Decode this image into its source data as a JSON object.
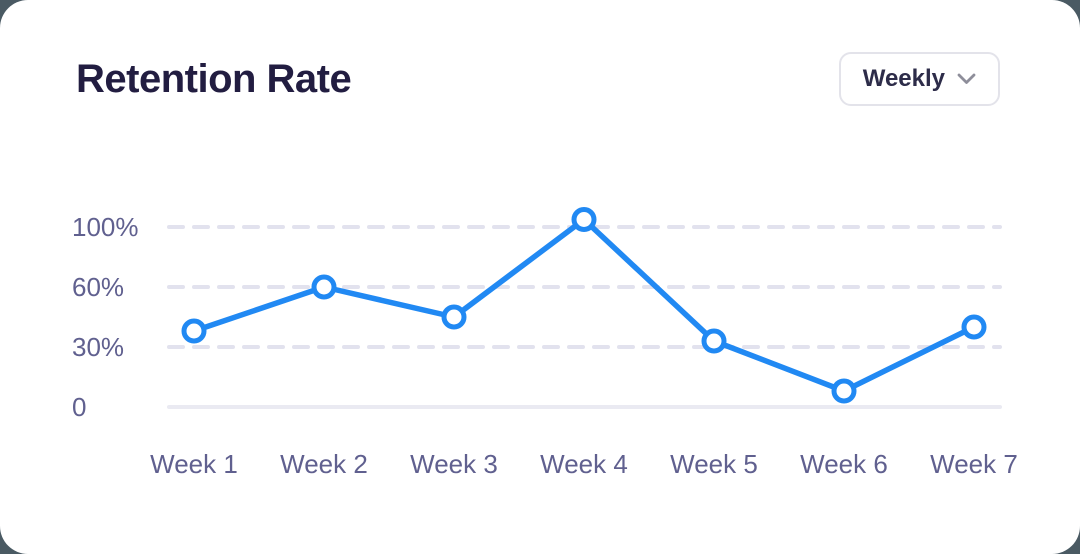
{
  "header": {
    "title": "Retention Rate",
    "period_selector": {
      "label": "Weekly",
      "icon": "chevron-down-icon"
    }
  },
  "colors": {
    "page_background": "#4a5a63",
    "card_background": "#ffffff",
    "title_text": "#221d41",
    "axis_label_text": "#60608f",
    "gridline": "#e2e2ee",
    "baseline": "#eaeaf2",
    "line": "#2189f3",
    "marker_fill": "#ffffff",
    "dropdown_border": "#e3e3ea",
    "dropdown_text": "#2d2c49",
    "chevron": "#8e8e9a"
  },
  "chart_data": {
    "type": "line",
    "title": "Retention Rate",
    "series_name": "Retention Rate",
    "categories": [
      "Week 1",
      "Week 2",
      "Week 3",
      "Week 4",
      "Week 5",
      "Week 6",
      "Week 7"
    ],
    "values": [
      38,
      60,
      45,
      105,
      33,
      8,
      40
    ],
    "unit": "%",
    "xlabel": "",
    "ylabel": "",
    "y_ticks": [
      {
        "label": "100%",
        "value": 100
      },
      {
        "label": "60%",
        "value": 60
      },
      {
        "label": "30%",
        "value": 30
      },
      {
        "label": "0",
        "value": 0
      }
    ],
    "y_axis_style": "non-linear: tick labels 0/30/60/100 rendered at equal pixel spacing",
    "grid": "dashed horizontal lines at 30%, 60%, 100%; solid baseline at 0",
    "legend": false,
    "marker_style": "open circle"
  }
}
